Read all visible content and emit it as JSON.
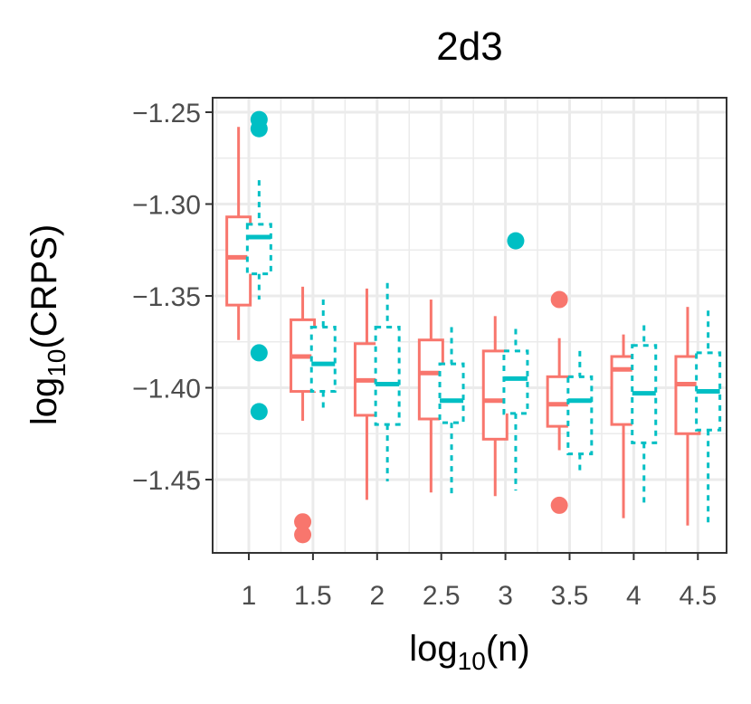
{
  "chart_data": {
    "type": "boxplot",
    "title": "2d3",
    "xlabel": {
      "base": "log",
      "sub": "10",
      "rest": "(n)"
    },
    "ylabel": {
      "base": "log",
      "sub": "10",
      "rest": "(CRPS)"
    },
    "x_ticks": [
      "1",
      "1.5",
      "2",
      "2.5",
      "3",
      "3.5",
      "4",
      "4.5"
    ],
    "y_ticks": [
      "−1.25",
      "−1.30",
      "−1.35",
      "−1.40",
      "−1.45"
    ],
    "ylim": [
      -1.489,
      -1.242
    ],
    "grid": true,
    "colors": {
      "red": "#F8766D",
      "teal": "#00BFC4",
      "panel_border": "#333333",
      "grid": "#ebebeb"
    },
    "series": [
      {
        "name": "red",
        "style": "solid",
        "offset": -0.08,
        "boxes": [
          {
            "x": 1,
            "lo": -1.374,
            "q1": -1.355,
            "med": -1.329,
            "q3": -1.307,
            "hi": -1.258,
            "outliers": []
          },
          {
            "x": 1.5,
            "lo": -1.418,
            "q1": -1.402,
            "med": -1.383,
            "q3": -1.363,
            "hi": -1.345,
            "outliers": [
              -1.473,
              -1.48
            ]
          },
          {
            "x": 2,
            "lo": -1.461,
            "q1": -1.415,
            "med": -1.396,
            "q3": -1.376,
            "hi": -1.346,
            "outliers": []
          },
          {
            "x": 2.5,
            "lo": -1.457,
            "q1": -1.417,
            "med": -1.392,
            "q3": -1.374,
            "hi": -1.352,
            "outliers": []
          },
          {
            "x": 3,
            "lo": -1.459,
            "q1": -1.428,
            "med": -1.407,
            "q3": -1.38,
            "hi": -1.361,
            "outliers": []
          },
          {
            "x": 3.5,
            "lo": -1.434,
            "q1": -1.421,
            "med": -1.409,
            "q3": -1.394,
            "hi": -1.373,
            "outliers": [
              -1.464,
              -1.352
            ]
          },
          {
            "x": 4,
            "lo": -1.471,
            "q1": -1.42,
            "med": -1.39,
            "q3": -1.383,
            "hi": -1.371,
            "outliers": []
          },
          {
            "x": 4.5,
            "lo": -1.475,
            "q1": -1.425,
            "med": -1.398,
            "q3": -1.383,
            "hi": -1.356,
            "outliers": []
          }
        ]
      },
      {
        "name": "teal",
        "style": "dashed",
        "offset": 0.08,
        "boxes": [
          {
            "x": 1,
            "lo": -1.352,
            "q1": -1.338,
            "med": -1.318,
            "q3": -1.311,
            "hi": -1.287,
            "outliers": [
              -1.254,
              -1.259,
              -1.381,
              -1.413
            ]
          },
          {
            "x": 1.5,
            "lo": -1.413,
            "q1": -1.402,
            "med": -1.387,
            "q3": -1.367,
            "hi": -1.352,
            "outliers": []
          },
          {
            "x": 2,
            "lo": -1.451,
            "q1": -1.42,
            "med": -1.398,
            "q3": -1.367,
            "hi": -1.343,
            "outliers": []
          },
          {
            "x": 2.5,
            "lo": -1.46,
            "q1": -1.419,
            "med": -1.407,
            "q3": -1.387,
            "hi": -1.367,
            "outliers": []
          },
          {
            "x": 3,
            "lo": -1.456,
            "q1": -1.414,
            "med": -1.395,
            "q3": -1.38,
            "hi": -1.368,
            "outliers": [
              -1.32
            ]
          },
          {
            "x": 3.5,
            "lo": -1.447,
            "q1": -1.436,
            "med": -1.407,
            "q3": -1.394,
            "hi": -1.38,
            "outliers": []
          },
          {
            "x": 4,
            "lo": -1.464,
            "q1": -1.43,
            "med": -1.403,
            "q3": -1.377,
            "hi": -1.366,
            "outliers": []
          },
          {
            "x": 4.5,
            "lo": -1.474,
            "q1": -1.423,
            "med": -1.402,
            "q3": -1.381,
            "hi": -1.358,
            "outliers": []
          }
        ]
      }
    ]
  }
}
